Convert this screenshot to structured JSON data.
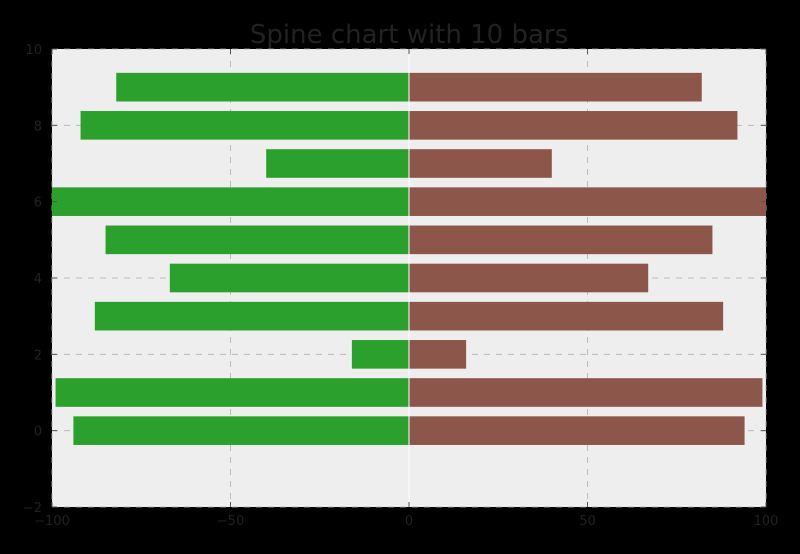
{
  "chart_data": {
    "type": "bar",
    "orientation": "horizontal",
    "title": "Spine chart with 10 bars",
    "xlabel": "",
    "ylabel": "",
    "xlim": [
      -100,
      100
    ],
    "ylim": [
      -2,
      10
    ],
    "xticks": [
      -100,
      -50,
      0,
      50,
      100
    ],
    "xtick_labels": [
      "−100",
      "−50",
      "0",
      "50",
      "100"
    ],
    "yticks": [
      -2,
      0,
      2,
      4,
      6,
      8,
      10
    ],
    "ytick_labels": [
      "−2",
      "0",
      "2",
      "4",
      "6",
      "8",
      "10"
    ],
    "grid": true,
    "bar_height": 0.75,
    "positions": [
      0,
      1,
      2,
      3,
      4,
      5,
      6,
      7,
      8,
      9
    ],
    "series": [
      {
        "values": [
          -94,
          -99,
          -16,
          -88,
          -67,
          -85,
          -100,
          -40,
          -92,
          -82
        ],
        "color": "#2ca02c"
      },
      {
        "values": [
          94,
          99,
          16,
          88,
          67,
          85,
          100,
          40,
          92,
          82
        ],
        "color": "#8c564b"
      }
    ],
    "colors": {
      "figure_background": "#000000",
      "axes_background": "#eeeeee",
      "grid": "#b0b0b0",
      "text": "#222222"
    }
  }
}
